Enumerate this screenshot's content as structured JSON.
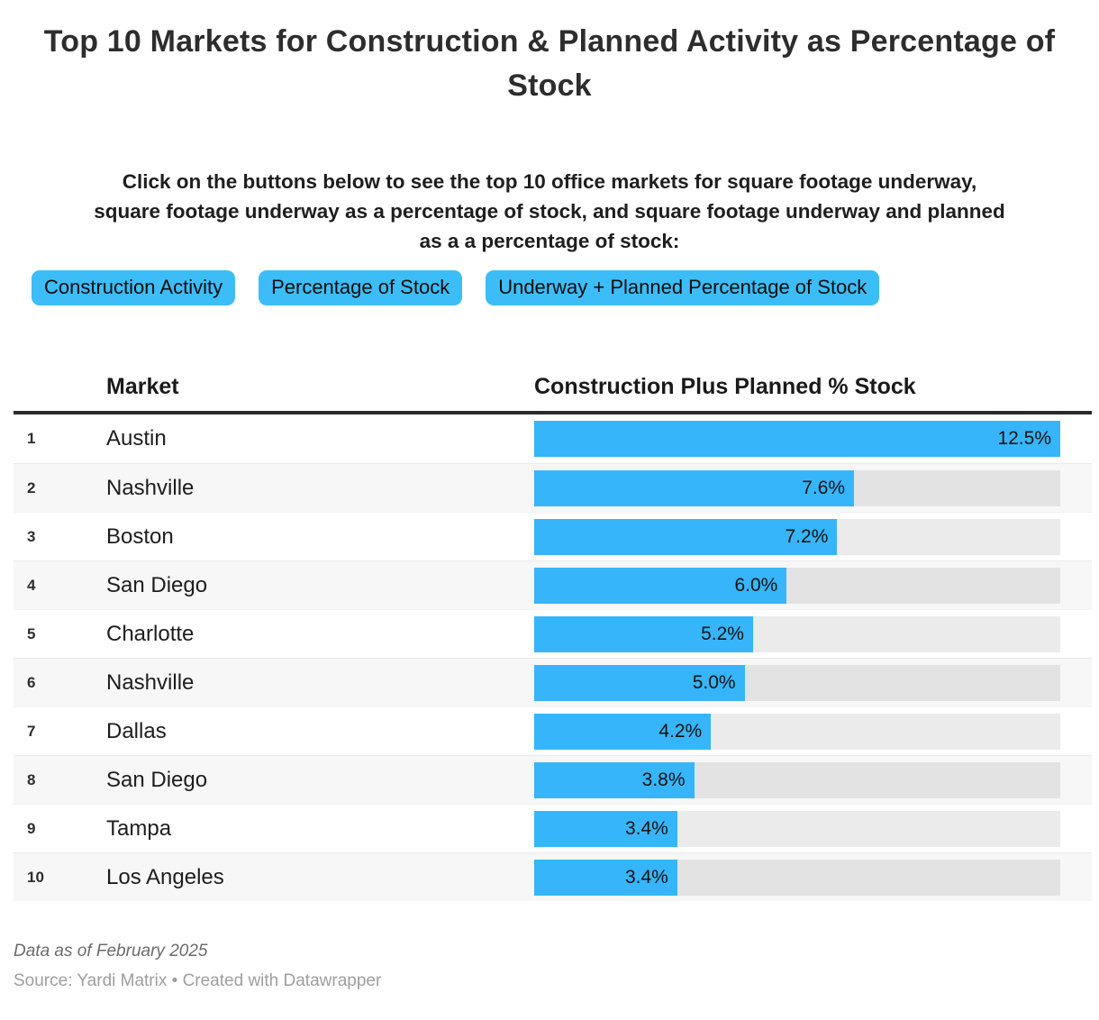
{
  "title": "Top 10 Markets for Construction & Planned Activity as Percentage of Stock",
  "intro_lines": [
    "Click on the buttons below to see the top 10 office markets for square footage underway,",
    "square footage underway as a percentage of stock, and square footage underway and planned",
    "as a a percentage of stock:"
  ],
  "buttons": [
    {
      "label": "Construction Activity"
    },
    {
      "label": "Percentage of Stock"
    },
    {
      "label": "Underway + Planned Percentage of Stock"
    }
  ],
  "table": {
    "columns": [
      "Market",
      "Construction Plus Planned % Stock"
    ],
    "max_value": 12.5,
    "rows": [
      {
        "rank": "1",
        "market": "Austin",
        "value": 12.5,
        "label": "12.5%"
      },
      {
        "rank": "2",
        "market": "Nashville",
        "value": 7.6,
        "label": "7.6%"
      },
      {
        "rank": "3",
        "market": "Boston",
        "value": 7.2,
        "label": "7.2%"
      },
      {
        "rank": "4",
        "market": "San Diego",
        "value": 6.0,
        "label": "6.0%"
      },
      {
        "rank": "5",
        "market": "Charlotte",
        "value": 5.2,
        "label": "5.2%"
      },
      {
        "rank": "6",
        "market": "Nashville",
        "value": 5.0,
        "label": "5.0%"
      },
      {
        "rank": "7",
        "market": "Dallas",
        "value": 4.2,
        "label": "4.2%"
      },
      {
        "rank": "8",
        "market": "San Diego",
        "value": 3.8,
        "label": "3.8%"
      },
      {
        "rank": "9",
        "market": "Tampa",
        "value": 3.4,
        "label": "3.4%"
      },
      {
        "rank": "10",
        "market": "Los Angeles",
        "value": 3.4,
        "label": "3.4%"
      }
    ]
  },
  "footer": {
    "note": "Data as of February 2025",
    "source": "Source: Yardi Matrix • Created with Datawrapper"
  },
  "colors": {
    "bar_fill": "#36b5fa",
    "button_bg": "#3cbdf8",
    "header_rule": "#2b2b2b",
    "alt_row": "#f7f7f7",
    "track": "rgba(0,0,0,0.08)"
  },
  "chart_data": {
    "type": "bar",
    "orientation": "horizontal",
    "title": "Top 10 Markets for Construction & Planned Activity as Percentage of Stock",
    "categories": [
      "Austin",
      "Nashville",
      "Boston",
      "San Diego",
      "Charlotte",
      "Nashville",
      "Dallas",
      "San Diego",
      "Tampa",
      "Los Angeles"
    ],
    "values": [
      12.5,
      7.6,
      7.2,
      6.0,
      5.2,
      5.0,
      4.2,
      3.8,
      3.4,
      3.4
    ],
    "value_labels": [
      "12.5%",
      "7.6%",
      "7.2%",
      "6.0%",
      "5.2%",
      "5.0%",
      "4.2%",
      "3.8%",
      "3.4%",
      "3.4%"
    ],
    "xlabel": "Construction Plus Planned % Stock",
    "ylabel": "Market",
    "xlim": [
      0,
      12.5
    ],
    "grid": false,
    "legend": false
  }
}
